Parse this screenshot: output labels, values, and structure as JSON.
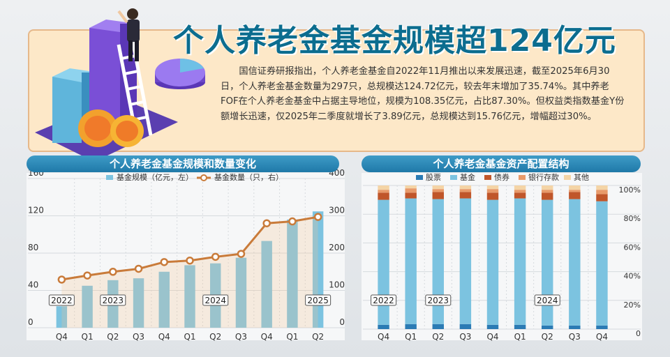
{
  "title": "个人养老金基金规模超124亿元",
  "intro": "国信证券研报指出，个人养老金基金自2022年11月推出以来发展迅速，截至2025年6月30日，个人养老金基金数量为297只，总规模达124.72亿元，较去年末增加了35.74%。其中养老FOF在个人养老金基金中占据主导地位，规模为108.35亿元，占比87.30%。但权益类指数基金Y份额增长迅速，仅2025年二季度就增长了3.89亿元，总规模达到15.76亿元，增幅超过30%。",
  "colors": {
    "accent": "#1f79a8",
    "bar": "#7cc3e0",
    "line": "#c97b3a",
    "stock": "#2b7bb4",
    "fund": "#7cc3e0",
    "bond": "#c0562a",
    "deposit": "#e89a6a",
    "other": "#f4d4a6"
  },
  "illustration_icons": [
    "bar-chart-illustration-icon",
    "pie-chart-icon",
    "coin-icon",
    "ladder-icon",
    "person-icon"
  ],
  "chart_data": [
    {
      "type": "bar",
      "title": "个人养老金基金规模和数量变化",
      "categories": [
        "Q4",
        "Q1",
        "Q2",
        "Q3",
        "Q4",
        "Q1",
        "Q2",
        "Q3",
        "Q4",
        "Q1",
        "Q2"
      ],
      "year_labels": [
        {
          "label": "2022",
          "index": 0
        },
        {
          "label": "2023",
          "index": 2
        },
        {
          "label": "2024",
          "index": 6
        },
        {
          "label": "2025",
          "index": 10
        }
      ],
      "series": [
        {
          "name": "基金规模（亿元，左）",
          "kind": "bar",
          "axis": "left",
          "values": [
            23,
            45,
            51,
            53,
            60,
            67,
            69,
            75,
            93,
            116,
            124.72
          ]
        },
        {
          "name": "基金数量（只，右）",
          "kind": "line",
          "axis": "right",
          "values": [
            129,
            140,
            150,
            158,
            176,
            180,
            190,
            198,
            280,
            285,
            297
          ]
        }
      ],
      "y_left": {
        "min": 0,
        "max": 160,
        "ticks": [
          0,
          40,
          80,
          120,
          160
        ]
      },
      "y_right": {
        "min": 0,
        "max": 400,
        "ticks": [
          0,
          100,
          200,
          300,
          400
        ]
      },
      "legend": "top"
    },
    {
      "type": "bar",
      "stacked": true,
      "title": "个人养老金基金资产配置结构",
      "categories": [
        "Q4",
        "Q1",
        "Q2",
        "Q3",
        "Q4",
        "Q1",
        "Q2",
        "Q3",
        "Q4"
      ],
      "year_labels": [
        {
          "label": "2022",
          "index": 0
        },
        {
          "label": "2023",
          "index": 2
        },
        {
          "label": "2024",
          "index": 6
        }
      ],
      "series": [
        {
          "name": "股票",
          "values": [
            3,
            3.5,
            3.5,
            3.5,
            3,
            3,
            2.5,
            2.5,
            2.5
          ]
        },
        {
          "name": "基金",
          "values": [
            87,
            87.5,
            87,
            87.5,
            87,
            88,
            87.5,
            88,
            86.5
          ]
        },
        {
          "name": "债券",
          "values": [
            5,
            4,
            5,
            4.5,
            5,
            4,
            5,
            5,
            5
          ]
        },
        {
          "name": "银行存款",
          "values": [
            2,
            3,
            2,
            2,
            2.5,
            2,
            2,
            1.5,
            3
          ]
        },
        {
          "name": "其他",
          "values": [
            3,
            2,
            2.5,
            2.5,
            2.5,
            3,
            3,
            3,
            3
          ]
        }
      ],
      "y": {
        "min": 0,
        "max": 100,
        "ticks": [
          "0",
          "20%",
          "40%",
          "60%",
          "80%",
          "100%"
        ]
      },
      "legend": "top"
    }
  ]
}
